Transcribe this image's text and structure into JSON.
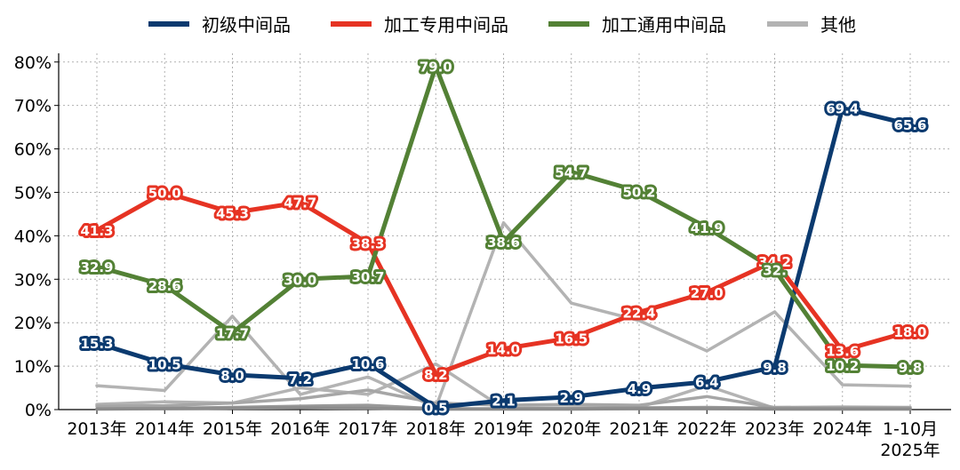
{
  "chart_data": {
    "type": "line",
    "title": "",
    "xlabel": "",
    "ylabel": "",
    "ylim": [
      0,
      82
    ],
    "yticks": [
      0,
      10,
      20,
      30,
      40,
      50,
      60,
      70,
      80
    ],
    "ytick_labels": [
      "0%",
      "10%",
      "20%",
      "30%",
      "40%",
      "50%",
      "60%",
      "70%",
      "80%"
    ],
    "categories": [
      "2013年",
      "2014年",
      "2015年",
      "2016年",
      "2017年",
      "2018年",
      "2019年",
      "2020年",
      "2021年",
      "2022年",
      "2023年",
      "2024年",
      "1-10月|2025年"
    ],
    "grid": true,
    "legend_position": "top",
    "series": [
      {
        "name": "初级中间品",
        "color": "#0b3a6f",
        "labeled": true,
        "values": [
          15.3,
          10.5,
          8.0,
          7.2,
          10.6,
          0.5,
          2.1,
          2.9,
          4.9,
          6.4,
          9.8,
          69.4,
          65.6
        ],
        "labels": [
          "15.3",
          "10.5",
          "8.0",
          "7.2",
          "10.6",
          "0.5",
          "2.1",
          "2.9",
          "4.9",
          "6.4",
          "9.8",
          "69.4",
          "65.6"
        ]
      },
      {
        "name": "加工专用中间品",
        "color": "#e63323",
        "labeled": true,
        "values": [
          41.3,
          50.0,
          45.3,
          47.7,
          38.3,
          8.2,
          14.0,
          16.5,
          22.4,
          27.0,
          34.2,
          13.6,
          18.0
        ],
        "labels": [
          "41.3",
          "50.0",
          "45.3",
          "47.7",
          "38.3",
          "8.2",
          "14.0",
          "16.5",
          "22.4",
          "27.0",
          "34.2",
          "13.6",
          "18.0"
        ]
      },
      {
        "name": "加工通用中间品",
        "color": "#538135",
        "labeled": true,
        "values": [
          32.9,
          28.6,
          17.7,
          30.0,
          30.7,
          79.0,
          38.6,
          54.7,
          50.2,
          41.9,
          32.2,
          10.2,
          9.8
        ],
        "labels": [
          "32.9",
          "28.6",
          "17.7",
          "30.0",
          "30.7",
          "79.0",
          "38.6",
          "54.7",
          "50.2",
          "41.9",
          "32.",
          "10.2",
          "9.8"
        ]
      },
      {
        "name": "其他",
        "color": "#b3b3b3",
        "labeled": false,
        "values": [
          5.5,
          4.4,
          21.5,
          3.5,
          7.5,
          0.5,
          43.0,
          24.5,
          20.5,
          13.5,
          22.5,
          5.7,
          5.4
        ]
      },
      {
        "name": "",
        "color": "#b3b3b3",
        "labeled": false,
        "legend": false,
        "values": [
          1.2,
          1.8,
          1.5,
          5.0,
          3.5,
          10.5,
          0.3,
          0.4,
          0.5,
          5.5,
          0.3,
          0.2,
          0.2
        ]
      },
      {
        "name": "",
        "color": "#a6a6a6",
        "labeled": false,
        "legend": false,
        "values": [
          0.8,
          0.9,
          1.5,
          2.5,
          4.5,
          1.5,
          1.0,
          1.2,
          1.0,
          3.0,
          0.5,
          0.6,
          0.5
        ]
      },
      {
        "name": "",
        "color": "#999999",
        "labeled": false,
        "legend": false,
        "values": [
          0.2,
          0.3,
          0.5,
          0.8,
          1.0,
          0.2,
          0.2,
          0.3,
          0.4,
          0.5,
          0.3,
          0.2,
          0.2
        ]
      },
      {
        "name": "",
        "color": "#8c8c8c",
        "labeled": false,
        "legend": false,
        "values": [
          0.1,
          0.2,
          0.3,
          0.4,
          0.3,
          0.1,
          0.1,
          0.1,
          0.2,
          0.2,
          0.1,
          0.1,
          0.1
        ]
      }
    ]
  }
}
